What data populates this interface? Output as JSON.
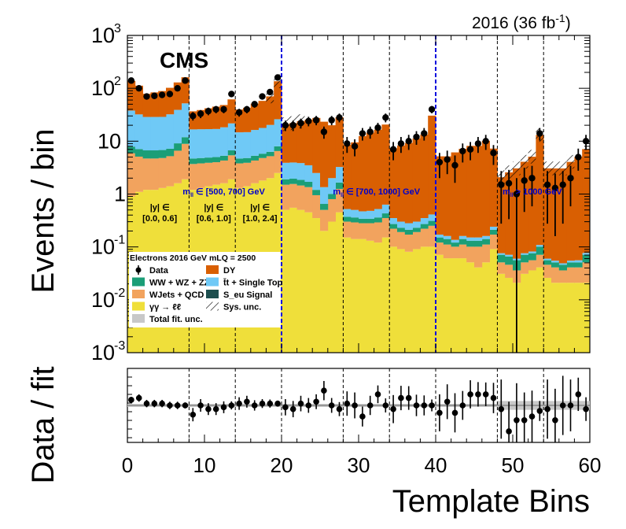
{
  "chart_data": [
    {
      "type": "bar",
      "subtype": "stacked-histogram-log",
      "lumi_label": "2016 (36 fb",
      "lumi_sup": "-1",
      "lumi_close": ")",
      "experiment": "CMS",
      "ylabel": "Events / bin",
      "ylim": [
        0.001,
        1000
      ],
      "yscale": "log",
      "xlim": [
        0,
        60
      ],
      "yticks": [
        {
          "value": 1000,
          "base": "10",
          "exp": "3"
        },
        {
          "value": 100,
          "base": "10",
          "exp": "2"
        },
        {
          "value": 10,
          "base": "10",
          "exp": ""
        },
        {
          "value": 1,
          "base": "1",
          "exp": ""
        },
        {
          "value": 0.1,
          "base": "10",
          "exp": "-1"
        },
        {
          "value": 0.01,
          "base": "10",
          "exp": "-2"
        },
        {
          "value": 0.001,
          "base": "10",
          "exp": "-3"
        }
      ],
      "separators_dashed_black": [
        8,
        14,
        28,
        34,
        48,
        54
      ],
      "separators_dashed_blue": [
        20,
        40
      ],
      "mass_labels": [
        {
          "text": "m",
          "sub": "ll",
          "range": "∈ [500, 700] GeV",
          "x": 3.5
        },
        {
          "text": "m",
          "sub": "ll",
          "range": "∈ [700, 1000] GeV",
          "x": 23
        },
        {
          "text": "m",
          "sub": "ll",
          "range": "> 1000 GeV",
          "x": 45
        }
      ],
      "rapidity_labels": [
        {
          "top": "|y| ∈",
          "bottom": "[0.0, 0.6]",
          "x": 4
        },
        {
          "top": "|y| ∈",
          "bottom": "[0.6, 1.0]",
          "x": 11
        },
        {
          "top": "|y| ∈",
          "bottom": "[1.0, 2.4]",
          "x": 17
        }
      ],
      "legend": {
        "header": "Electrons 2016  GeV mLQ = 2500",
        "entries": [
          {
            "label": "Data",
            "kind": "marker"
          },
          {
            "label": "DY",
            "kind": "box",
            "color": "#d95f02"
          },
          {
            "label": "WW + WZ + ZZ",
            "kind": "box",
            "color": "#1b9e77"
          },
          {
            "label": "t̄t + Single Top",
            "kind": "box",
            "color": "#6fc9f6"
          },
          {
            "label": "WJets + QCD",
            "kind": "box",
            "color": "#f2a35e"
          },
          {
            "label": "S_eu Signal",
            "kind": "box",
            "color": "#1d4e4e"
          },
          {
            "label": "γγ → ℓℓ",
            "kind": "box",
            "color": "#efdf3a"
          },
          {
            "label": "Sys. unc.",
            "kind": "hatch"
          },
          {
            "label": "Total fit. unc.",
            "kind": "box",
            "color": "#c8c8c8"
          }
        ]
      },
      "colors": {
        "gg": "#efdf3a",
        "wjets": "#f2a35e",
        "diboson": "#1b9e77",
        "ttbar": "#6fc9f6",
        "dy": "#d95f02"
      },
      "series": [
        {
          "key": "gg",
          "values": [
            0.9,
            1.1,
            1.2,
            1.2,
            1.3,
            1.4,
            1.6,
            1.9,
            1.2,
            1.3,
            1.4,
            1.5,
            1.6,
            1.9,
            1.3,
            1.4,
            1.6,
            1.8,
            2.0,
            2.5,
            0.5,
            0.55,
            0.5,
            0.45,
            0.35,
            0.2,
            0.3,
            0.45,
            0.15,
            0.14,
            0.14,
            0.13,
            0.12,
            0.15,
            0.1,
            0.09,
            0.08,
            0.09,
            0.1,
            0.1,
            0.07,
            0.06,
            0.06,
            0.06,
            0.05,
            0.04,
            0.05,
            0.09,
            0.03,
            0.025,
            0.02,
            0.03,
            0.035,
            0.04,
            0.025,
            0.02,
            0.02,
            0.02,
            0.02,
            0.02
          ]
        },
        {
          "key": "wjets",
          "values": [
            5,
            4,
            3.5,
            3.5,
            3.5,
            3.8,
            5,
            7,
            2.5,
            2.5,
            2.5,
            2.5,
            2.7,
            3.5,
            2.5,
            2.5,
            2.7,
            3,
            3.2,
            4,
            1.0,
            1.0,
            0.95,
            0.9,
            0.6,
            0.3,
            0.5,
            0.8,
            0.15,
            0.15,
            0.14,
            0.15,
            0.17,
            0.2,
            0.12,
            0.1,
            0.09,
            0.1,
            0.12,
            0.15,
            0.05,
            0.05,
            0.04,
            0.05,
            0.05,
            0.06,
            0.06,
            0.08,
            0.02,
            0.02,
            0.015,
            0.02,
            0.02,
            0.03,
            0.02,
            0.02,
            0.015,
            0.02,
            0.02,
            0.03
          ]
        },
        {
          "key": "diboson",
          "values": [
            2,
            2,
            2,
            2,
            2,
            2,
            2.5,
            3,
            1,
            1,
            1,
            1,
            1,
            1.3,
            0.9,
            0.9,
            1,
            1,
            1.1,
            1.5,
            0.4,
            0.4,
            0.4,
            0.35,
            0.25,
            0.15,
            0.2,
            0.4,
            0.07,
            0.07,
            0.06,
            0.06,
            0.07,
            0.08,
            0.05,
            0.04,
            0.04,
            0.04,
            0.05,
            0.06,
            0.03,
            0.03,
            0.02,
            0.03,
            0.03,
            0.03,
            0.03,
            0.04,
            0.02,
            0.02,
            0.02,
            0.02,
            0.02,
            0.03,
            0.01,
            0.01,
            0.01,
            0.01,
            0.01,
            0.02
          ]
        },
        {
          "key": "ttbar",
          "values": [
            30,
            25,
            22,
            22,
            22,
            25,
            30,
            40,
            12,
            12,
            12,
            12,
            13,
            15,
            10,
            10,
            11,
            12,
            14,
            18,
            2,
            2,
            2,
            1.8,
            1.3,
            0.7,
            1,
            1.6,
            0.15,
            0.14,
            0.13,
            0.14,
            0.16,
            0.2,
            0.08,
            0.07,
            0.07,
            0.07,
            0.08,
            0.1,
            0.02,
            0.02,
            0.015,
            0.02,
            0.02,
            0.02,
            0.02,
            0.03,
            0.005,
            0.005,
            0.004,
            0.005,
            0.006,
            0.008,
            0.004,
            0.004,
            0.003,
            0.004,
            0.005,
            0.006
          ]
        },
        {
          "key": "dy",
          "values": [
            100,
            80,
            50,
            55,
            60,
            70,
            90,
            110,
            20,
            22,
            25,
            28,
            30,
            40,
            25,
            28,
            35,
            40,
            50,
            110,
            17,
            18,
            20,
            22,
            25,
            22,
            18,
            25,
            8,
            9,
            12,
            14,
            16,
            20,
            7,
            8,
            9,
            11,
            13,
            30,
            5,
            5,
            6,
            7,
            8,
            8,
            10,
            7,
            2,
            2.5,
            3,
            4,
            5,
            13,
            3,
            3,
            3,
            4,
            5,
            7
          ]
        }
      ],
      "data": [
        140,
        100,
        70,
        72,
        75,
        78,
        100,
        140,
        30,
        33,
        37,
        40,
        40,
        78,
        35,
        40,
        50,
        70,
        85,
        160,
        20,
        20,
        22,
        24,
        25,
        15,
        25,
        28,
        9,
        8,
        14,
        15,
        18,
        28,
        7,
        9,
        10,
        12,
        14,
        40,
        4,
        4.5,
        3.5,
        6.5,
        7,
        9,
        10,
        6,
        1.5,
        1.6,
        1,
        1.8,
        2,
        14,
        1.5,
        1.3,
        1.5,
        2,
        5,
        10
      ],
      "hatch_bins": [
        18,
        19,
        20,
        21,
        22,
        48,
        49,
        50,
        51,
        52,
        53,
        54,
        55,
        56,
        57
      ]
    },
    {
      "type": "scatter",
      "ylabel": "Data / fit",
      "xlabel": "Template Bins",
      "xlim": [
        0,
        60
      ],
      "xticks": [
        "0",
        "10",
        "20",
        "30",
        "40",
        "50",
        "60"
      ],
      "ratio": [
        1.15,
        1.2,
        1.05,
        1.05,
        1.05,
        1.0,
        1.0,
        1.0,
        0.75,
        1.0,
        0.9,
        0.9,
        0.95,
        1.0,
        1.05,
        1.1,
        1.0,
        1.05,
        1.05,
        1.05,
        0.95,
        0.9,
        1.05,
        1.0,
        1.1,
        1.4,
        1.0,
        0.9,
        1.05,
        1.0,
        0.7,
        1.0,
        1.3,
        1.0,
        0.9,
        1.2,
        1.2,
        1.0,
        1.0,
        1.0,
        0.8,
        1.1,
        0.8,
        1.0,
        1.3,
        1.3,
        1.3,
        1.2,
        0.9,
        0.3,
        0.6,
        0.6,
        0.7,
        0.85,
        0.9,
        0.6,
        1.0,
        1.0,
        1.3,
        0.9
      ],
      "ratio_err": [
        0.08,
        0.1,
        0.1,
        0.1,
        0.1,
        0.1,
        0.1,
        0.08,
        0.18,
        0.17,
        0.16,
        0.16,
        0.16,
        0.11,
        0.17,
        0.16,
        0.14,
        0.12,
        0.11,
        0.08,
        0.22,
        0.22,
        0.21,
        0.2,
        0.2,
        0.26,
        0.2,
        0.19,
        0.33,
        0.35,
        0.27,
        0.26,
        0.24,
        0.19,
        0.38,
        0.33,
        0.32,
        0.29,
        0.27,
        0.16,
        0.5,
        0.47,
        0.53,
        0.39,
        0.38,
        0.33,
        0.32,
        0.41,
        0.8,
        0.8,
        1.0,
        0.75,
        0.7,
        0.27,
        0.8,
        0.85,
        0.8,
        0.7,
        0.45,
        0.32
      ]
    }
  ]
}
